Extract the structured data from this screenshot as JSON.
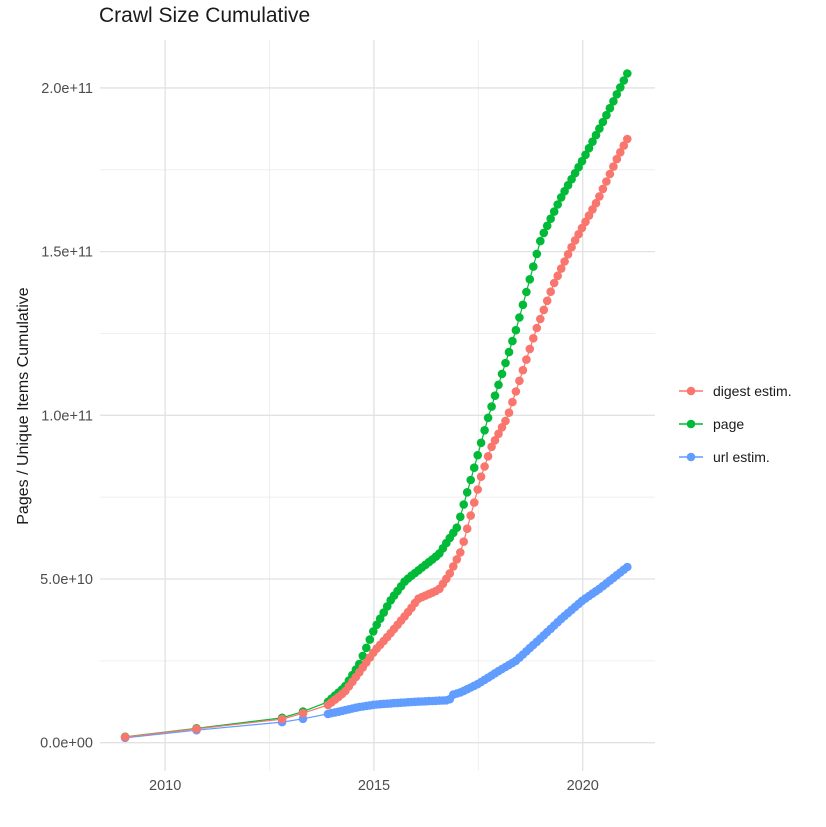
{
  "title": "Crawl Size Cumulative",
  "y_axis": {
    "title": "Pages / Unique Items Cumulative",
    "tick_labels": [
      "0.0e+00",
      "5.0e+10",
      "1.0e+11",
      "1.5e+11",
      "2.0e+11"
    ],
    "tick_values_e9": [
      0,
      50,
      100,
      150,
      200
    ],
    "minor_values_e9": [
      25,
      75,
      125,
      175
    ]
  },
  "x_axis": {
    "tick_labels": [
      "2010",
      "2015",
      "2020"
    ],
    "tick_values": [
      2010,
      2015,
      2020
    ],
    "minor_values": [
      2012.5,
      2017.5
    ]
  },
  "legend": {
    "items": [
      {
        "label": "digest estim.",
        "color": "#F8766D"
      },
      {
        "label": "page",
        "color": "#00BA38"
      },
      {
        "label": "url estim.",
        "color": "#619CFF"
      }
    ]
  },
  "colors": {
    "background": "#ffffff",
    "grid_major": "#e2e2e2",
    "grid_minor": "#efefef",
    "tick_text": "#4d4d4d",
    "title_text": "#1a1a1a"
  },
  "chart_data": {
    "type": "scatter",
    "title": "Crawl Size Cumulative",
    "xlabel": "",
    "ylabel": "Pages / Unique Items Cumulative",
    "values_unit": "billions of items (e9)",
    "xlim": [
      2008.44,
      2021.73
    ],
    "ylim_e9": [
      -8.65,
      214.65
    ],
    "grid": "on",
    "legend_position": "right",
    "sparse_years": [
      2009.04,
      2010.75,
      2012.8,
      2013.3
    ],
    "dense_start": 2013.9,
    "dense_end": 2021.07,
    "dense_step": 0.08333,
    "series": [
      {
        "name": "url estim.",
        "color": "#619CFF",
        "anchors_year_value_e9": [
          [
            2009.04,
            1.5
          ],
          [
            2010.75,
            3.8
          ],
          [
            2012.8,
            6.3
          ],
          [
            2013.3,
            7.3
          ],
          [
            2013.9,
            8.8
          ],
          [
            2014.2,
            9.6
          ],
          [
            2014.6,
            10.8
          ],
          [
            2015.0,
            11.6
          ],
          [
            2015.5,
            12.1
          ],
          [
            2016.0,
            12.5
          ],
          [
            2016.5,
            12.8
          ],
          [
            2016.8,
            13.0
          ],
          [
            2016.9,
            14.7
          ],
          [
            2017.1,
            15.5
          ],
          [
            2017.5,
            18.0
          ],
          [
            2018.0,
            22.0
          ],
          [
            2018.4,
            25.0
          ],
          [
            2019.0,
            32.0
          ],
          [
            2019.5,
            38.0
          ],
          [
            2020.0,
            43.5
          ],
          [
            2020.4,
            47.0
          ],
          [
            2020.7,
            50.0
          ],
          [
            2021.07,
            53.7
          ]
        ]
      },
      {
        "name": "page",
        "color": "#00BA38",
        "anchors_year_value_e9": [
          [
            2009.04,
            1.8
          ],
          [
            2010.75,
            4.4
          ],
          [
            2012.8,
            7.6
          ],
          [
            2013.3,
            9.5
          ],
          [
            2013.9,
            12.5
          ],
          [
            2014.3,
            17.0
          ],
          [
            2014.65,
            24.0
          ],
          [
            2015.0,
            34.5
          ],
          [
            2015.4,
            43.5
          ],
          [
            2015.75,
            49.5
          ],
          [
            2016.0,
            52.0
          ],
          [
            2016.3,
            55.0
          ],
          [
            2016.55,
            57.5
          ],
          [
            2017.0,
            66.0
          ],
          [
            2017.4,
            84.0
          ],
          [
            2017.75,
            100.0
          ],
          [
            2018.4,
            126.0
          ],
          [
            2019.0,
            154.0
          ],
          [
            2019.5,
            167.0
          ],
          [
            2020.0,
            178.0
          ],
          [
            2020.5,
            190.0
          ],
          [
            2021.07,
            204.5
          ]
        ]
      },
      {
        "name": "digest estim.",
        "color": "#F8766D",
        "anchors_year_value_e9": [
          [
            2009.04,
            1.7
          ],
          [
            2010.75,
            4.2
          ],
          [
            2012.8,
            7.2
          ],
          [
            2013.3,
            9.0
          ],
          [
            2013.9,
            11.5
          ],
          [
            2014.3,
            15.5
          ],
          [
            2014.65,
            21.5
          ],
          [
            2015.0,
            27.8
          ],
          [
            2015.3,
            32.0
          ],
          [
            2015.6,
            36.5
          ],
          [
            2015.9,
            41.2
          ],
          [
            2016.05,
            43.9
          ],
          [
            2016.3,
            45.3
          ],
          [
            2016.55,
            46.7
          ],
          [
            2016.8,
            51.3
          ],
          [
            2017.1,
            59.0
          ],
          [
            2017.56,
            81.0
          ],
          [
            2017.8,
            90.0
          ],
          [
            2018.2,
            99.5
          ],
          [
            2018.88,
            126.0
          ],
          [
            2019.3,
            140.0
          ],
          [
            2019.78,
            152.6
          ],
          [
            2020.36,
            165.8
          ],
          [
            2020.84,
            178.9
          ],
          [
            2021.07,
            184.5
          ]
        ]
      }
    ]
  }
}
